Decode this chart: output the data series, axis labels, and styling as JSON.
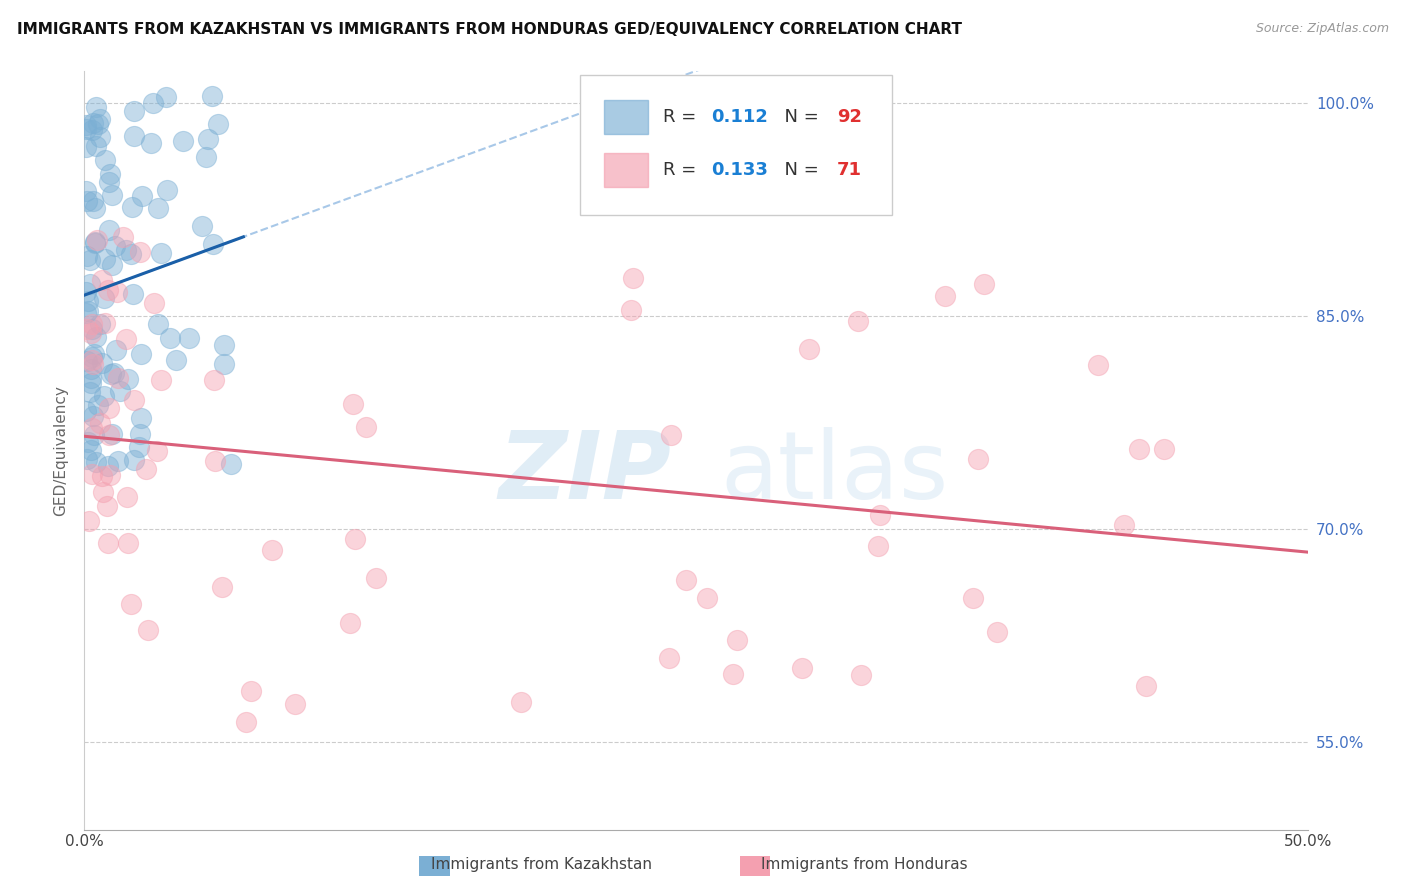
{
  "title": "IMMIGRANTS FROM KAZAKHSTAN VS IMMIGRANTS FROM HONDURAS GED/EQUIVALENCY CORRELATION CHART",
  "source": "Source: ZipAtlas.com",
  "ylabel": "GED/Equivalency",
  "legend_R_values": [
    "0.112",
    "0.133"
  ],
  "legend_N_values": [
    "92",
    "71"
  ],
  "kazakhstan_color": "#7bafd4",
  "honduras_color": "#f4a0b0",
  "kazakhstan_line_color": "#1a5fa8",
  "honduras_line_color": "#d9607a",
  "kazakhstan_dashed_color": "#a8c8e8",
  "background_color": "#ffffff",
  "xmin": 0.0,
  "xmax": 0.5,
  "ymin": 0.488,
  "ymax": 1.022,
  "right_yticks": [
    1.0,
    0.85,
    0.7,
    0.55
  ],
  "right_yticklabels": [
    "100.0%",
    "85.0%",
    "70.0%",
    "55.0%"
  ],
  "watermark_zip": "ZIP",
  "watermark_atlas": "atlas",
  "bottom_label_kaz": "Immigrants from Kazakhstan",
  "bottom_label_hon": "Immigrants from Honduras"
}
